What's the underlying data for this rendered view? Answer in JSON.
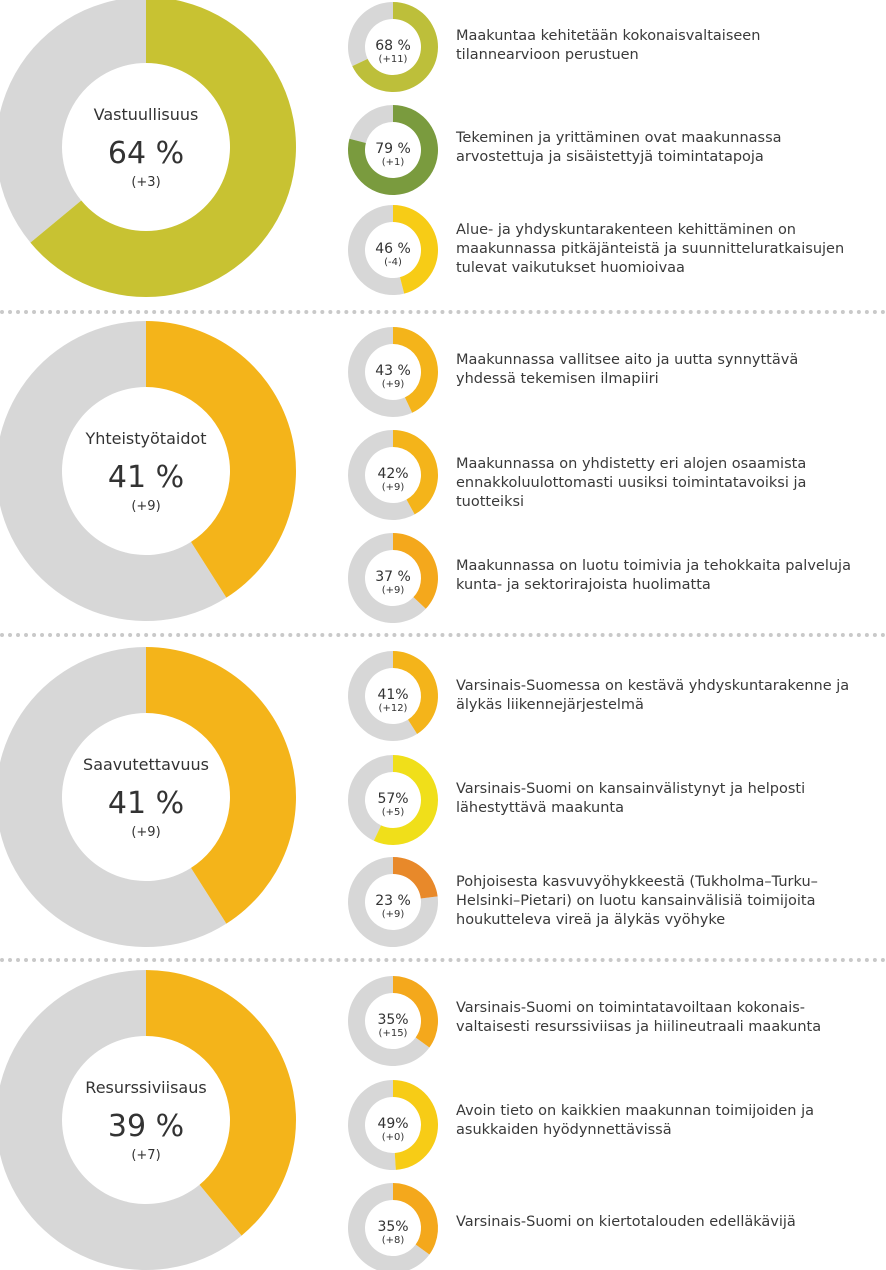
{
  "chart_data": [
    {
      "type": "donut",
      "title": "Vastuullisuus",
      "value_label": "64 %",
      "change_label": "(+3)",
      "value": 64,
      "color": "#c8c232",
      "items": [
        {
          "value": 68,
          "value_label": "68 %",
          "change_label": "(+11)",
          "color": "#bdbf3a",
          "text": "Maakuntaa kehitetään kokonaisvaltaiseen\ntilannearvioon perustuen"
        },
        {
          "value": 79,
          "value_label": "79 %",
          "change_label": "(+1)",
          "color": "#7a9b3e",
          "text": "Tekeminen ja yrittäminen ovat maakunnassa\narvostettuja ja sisäistettyjä toimintatapoja"
        },
        {
          "value": 46,
          "value_label": "46 %",
          "change_label": "(-4)",
          "color": "#f7cc16",
          "text": "Alue- ja yhdyskuntarakenteen kehittäminen on\nmaakunnassa pitkäjänteistä ja suunnitteluratkaisujen\ntulevat vaikutukset huomioivaa"
        }
      ]
    },
    {
      "type": "donut",
      "title": "Yhteistyötaidot",
      "value_label": "41 %",
      "change_label": "(+9)",
      "value": 41,
      "color": "#f4b41a",
      "items": [
        {
          "value": 43,
          "value_label": "43 %",
          "change_label": "(+9)",
          "color": "#f4b41a",
          "text": "Maakunnassa vallitsee aito ja uutta synnyttävä\nyhdessä tekemisen ilmapiiri"
        },
        {
          "value": 42,
          "value_label": "42%",
          "change_label": "(+9)",
          "color": "#f4b41a",
          "text": "Maakunnassa on yhdistetty eri alojen osaamista\nennakkoluulottomasti uusiksi toimintatavoiksi ja tuotteiksi"
        },
        {
          "value": 37,
          "value_label": "37 %",
          "change_label": "(+9)",
          "color": "#f4a81c",
          "text": "Maakunnassa on luotu toimivia ja tehokkaita palveluja\nkunta- ja sektorirajoista huolimatta"
        }
      ]
    },
    {
      "type": "donut",
      "title": "Saavutettavuus",
      "value_label": "41 %",
      "change_label": "(+9)",
      "value": 41,
      "color": "#f4b41a",
      "items": [
        {
          "value": 41,
          "value_label": "41%",
          "change_label": "(+12)",
          "color": "#f4b41a",
          "text": "Varsinais-Suomessa on kestävä yhdyskuntarakenne ja\nälykäs liikennejärjestelmä"
        },
        {
          "value": 57,
          "value_label": "57%",
          "change_label": "(+5)",
          "color": "#f0df1a",
          "text": "Varsinais-Suomi on kansainvälistynyt ja helposti\nlähestyttävä maakunta"
        },
        {
          "value": 23,
          "value_label": "23 %",
          "change_label": "(+9)",
          "color": "#e8892a",
          "text": "Pohjoisesta kasvuvyöhykkeestä (Tukholma–Turku–\nHelsinki–Pietari) on luotu kansainvälisiä toimijoita\nhoukutteleva vireä ja älykäs vyöhyke"
        }
      ]
    },
    {
      "type": "donut",
      "title": "Resurssiviisaus",
      "value_label": "39 %",
      "change_label": "(+7)",
      "value": 39,
      "color": "#f4b41a",
      "items": [
        {
          "value": 35,
          "value_label": "35%",
          "change_label": "(+15)",
          "color": "#f4a81c",
          "text": "Varsinais-Suomi on toimintatavoiltaan kokonais-\nvaltaisesti resurssiviisas ja hiilineutraali maakunta"
        },
        {
          "value": 49,
          "value_label": "49%",
          "change_label": "(+0)",
          "color": "#f7cc16",
          "text": "Avoin tieto on kaikkien maakunnan toimijoiden ja\nasukkaiden hyödynnettävissä"
        },
        {
          "value": 35,
          "value_label": "35%",
          "change_label": "(+8)",
          "color": "#f4a81c",
          "text": "Varsinais-Suomi on kiertotalouden edelläkävijä"
        }
      ]
    }
  ],
  "colors": {
    "remainder": "#d7d7d7",
    "text": "#333333",
    "separator": "#c9c9c9"
  }
}
